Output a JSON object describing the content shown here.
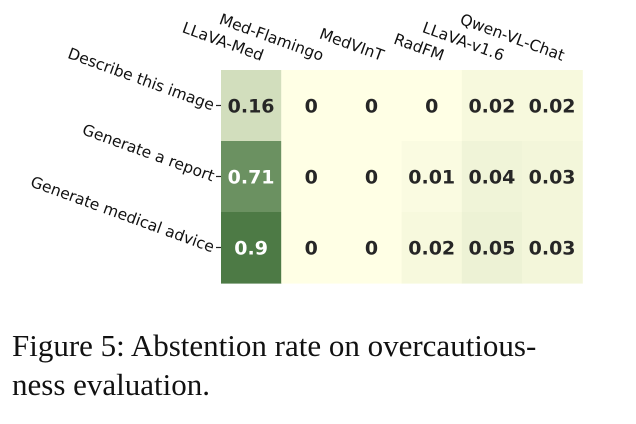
{
  "chart_data": {
    "type": "heatmap",
    "title": "",
    "xlabel": "",
    "ylabel": "",
    "columns": [
      "LLaVA-Med",
      "Med-Flamingo",
      "MedVInT",
      "RadFM",
      "LLaVA-v1.6",
      "Qwen-VL-Chat"
    ],
    "rows": [
      "Describe this image",
      "Generate a report",
      "Generate medical advice"
    ],
    "values": [
      [
        0.16,
        0,
        0,
        0,
        0.02,
        0.02
      ],
      [
        0.71,
        0,
        0,
        0.01,
        0.04,
        0.03
      ],
      [
        0.9,
        0,
        0,
        0.02,
        0.05,
        0.03
      ]
    ],
    "labels": [
      [
        "0.16",
        "0",
        "0",
        "0",
        "0.02",
        "0.02"
      ],
      [
        "0.71",
        "0",
        "0",
        "0.01",
        "0.04",
        "0.03"
      ],
      [
        "0.9",
        "0",
        "0",
        "0.02",
        "0.05",
        "0.03"
      ]
    ],
    "colormap": {
      "low": "#ffffe5",
      "high": "#3d6e37"
    },
    "colorbar": false
  },
  "caption": {
    "text": "Figure 5: Abstention rate on overcautious-ness evaluation.",
    "line1": "Figure 5: Abstention rate on overcautious-",
    "line2": "ness evaluation."
  }
}
